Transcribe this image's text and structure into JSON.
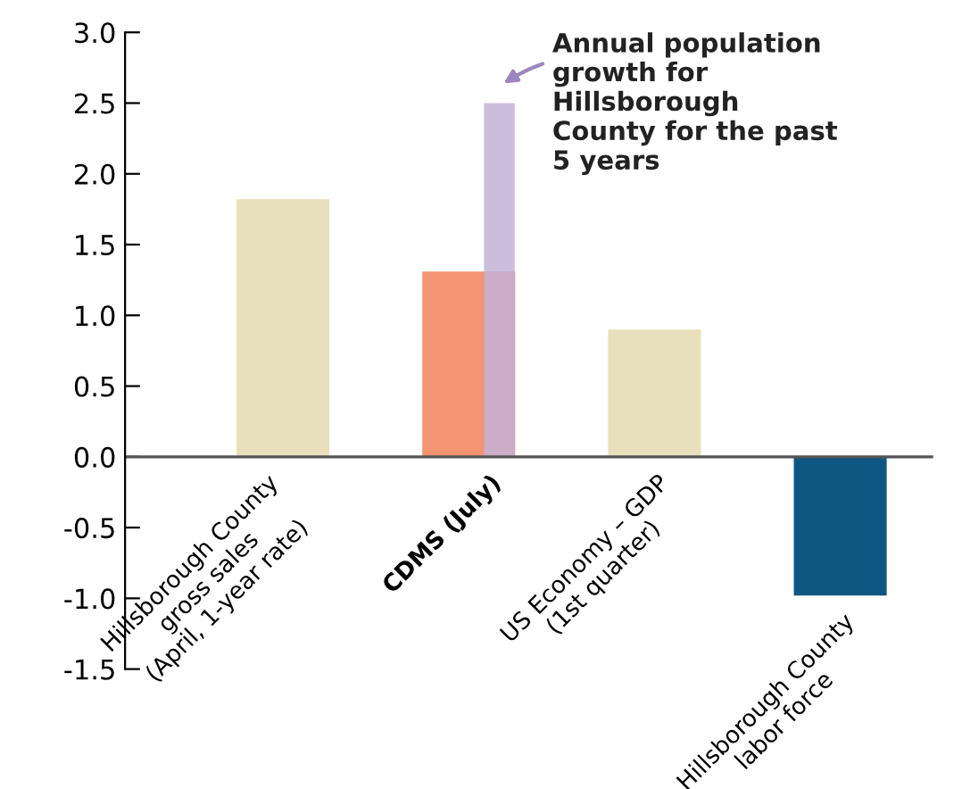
{
  "chart_data": {
    "type": "bar",
    "categories": [
      "Hillsborough County\ngross sales\n(April, 1-year rate)",
      "CDMS (July)",
      "US Economy – GDP\n(1st quarter)",
      "Hillsborough County\nlabor force"
    ],
    "series": [
      {
        "colors": [
          "#e8e0bd",
          "#f39472",
          "#e8e0bd",
          "#0f5783"
        ],
        "values": [
          1.82,
          1.31,
          0.9,
          -0.98
        ]
      },
      {
        "color": "#c3b1d6",
        "values": [
          null,
          2.5,
          null,
          null
        ]
      }
    ],
    "annotations": [
      {
        "text": "Annual population\ngrowth for\nHillsborough\nCounty for the past\n5 years",
        "x": "CDMS (July)",
        "y": 2.5
      }
    ],
    "ylim": [
      -1.5,
      3.0
    ],
    "yticks": [
      {
        "value": 3.0,
        "label": "3.0"
      },
      {
        "value": 2.5,
        "label": "2.5"
      },
      {
        "value": 2.0,
        "label": "2.0"
      },
      {
        "value": 1.5,
        "label": "1.5"
      },
      {
        "value": 1.0,
        "label": "1.0"
      },
      {
        "value": 0.5,
        "label": "0.5"
      },
      {
        "value": 0.0,
        "label": "0.0"
      },
      {
        "value": -0.5,
        "label": "-0.5"
      },
      {
        "value": -1.0,
        "label": "-1.0"
      },
      {
        "value": -1.5,
        "label": "-1.5"
      }
    ],
    "grid": false,
    "legend": false
  }
}
